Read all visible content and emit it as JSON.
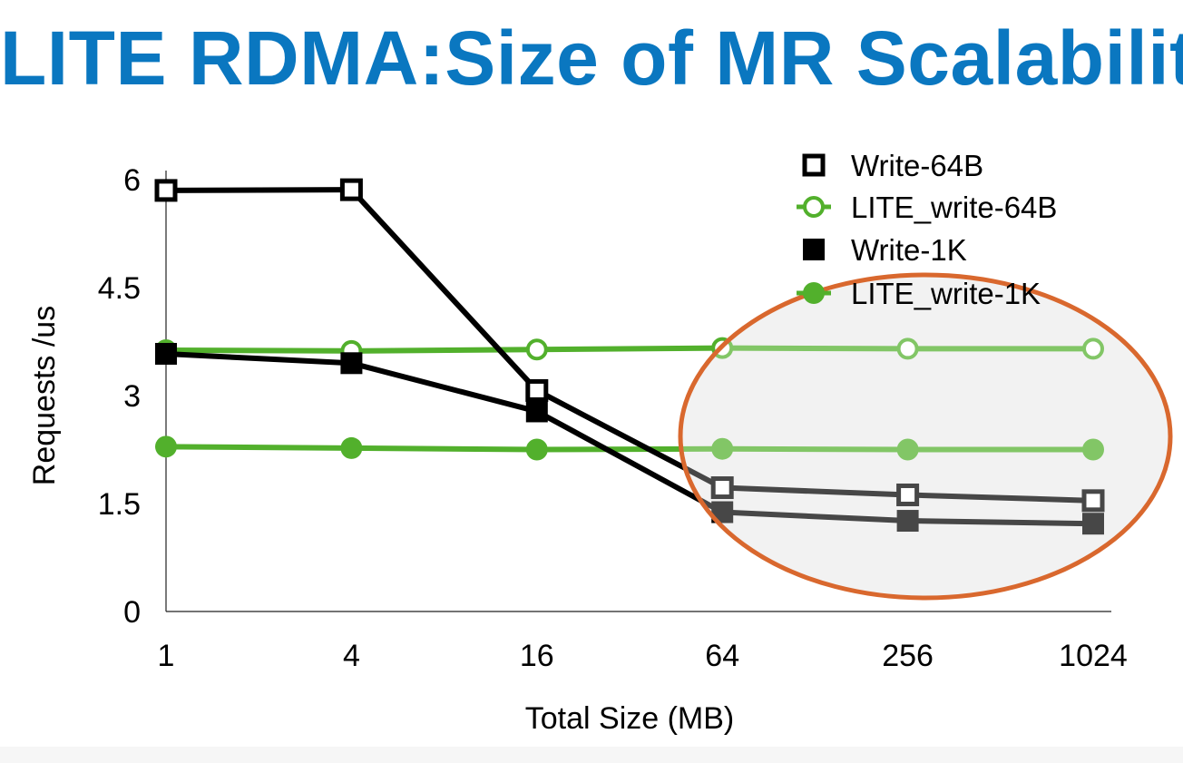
{
  "title": "LITE RDMA:Size of MR Scalability",
  "chart_data": {
    "type": "line",
    "x": [
      "1",
      "4",
      "16",
      "64",
      "256",
      "1024"
    ],
    "xlabel": "Total Size (MB)",
    "ylabel": "Requests /us",
    "ylim": [
      0,
      6
    ],
    "yticks": [
      "0",
      "1.5",
      "3",
      "4.5",
      "6"
    ],
    "ytick_values": [
      0,
      1.5,
      3,
      4.5,
      6
    ],
    "grid": false,
    "legend_position": "top-right",
    "series": [
      {
        "name": "Write-64B",
        "values": [
          5.85,
          5.86,
          3.07,
          1.72,
          1.62,
          1.54
        ],
        "color": "#000000",
        "marker": "open-square"
      },
      {
        "name": "LITE_write-64B",
        "values": [
          3.63,
          3.62,
          3.64,
          3.66,
          3.65,
          3.65
        ],
        "color": "#52b02c",
        "marker": "open-circle"
      },
      {
        "name": "Write-1K",
        "values": [
          3.58,
          3.45,
          2.78,
          1.38,
          1.26,
          1.22
        ],
        "color": "#000000",
        "marker": "filled-square"
      },
      {
        "name": "LITE_write-1K",
        "values": [
          2.29,
          2.27,
          2.25,
          2.26,
          2.25,
          2.25
        ],
        "color": "#52b02c",
        "marker": "filled-circle"
      }
    ],
    "annotations": [
      {
        "type": "ellipse",
        "target": "x from 64 to 1024",
        "color": "#d9682e"
      }
    ]
  }
}
